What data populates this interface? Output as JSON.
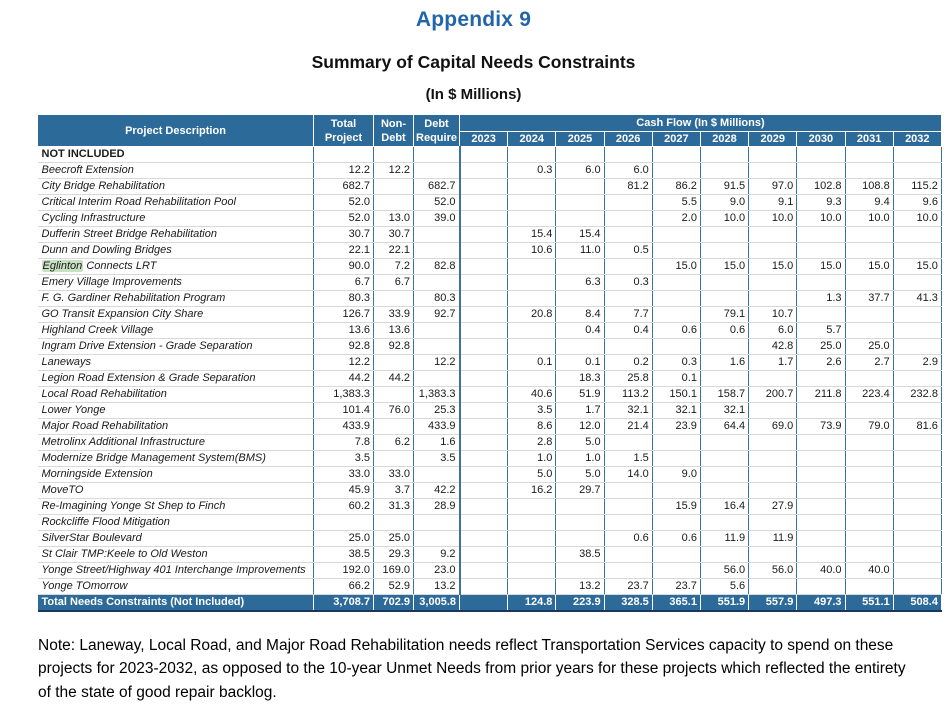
{
  "page": {
    "appendix_title": "Appendix 9",
    "table_title": "Summary of Capital Needs Constraints",
    "table_subtitle": "(In $ Millions)",
    "note": "Note: Laneway, Local Road, and Major Road Rehabilitation needs reflect Transportation Services capacity to spend on these projects for 2023-2032, as opposed to the 10-year Unmet Needs from prior years for these projects which reflected the entirety of the state of good repair backlog."
  },
  "colors": {
    "header_blue": "#2C6A9A",
    "title_blue": "#2166A8",
    "grid_blue": "#3B73A4",
    "grid_gray": "#D9D9D9",
    "total_border_navy": "#17375E",
    "highlight_green": "#C8E1C3"
  },
  "table": {
    "headers": {
      "project_description": "Project Description",
      "total_project": [
        "Total",
        "Project"
      ],
      "non_debt": [
        "Non-",
        "Debt"
      ],
      "debt_require": [
        "Debt",
        "Require"
      ],
      "cash_flow": "Cash Flow (In $ Millions)",
      "years": [
        "2023",
        "2024",
        "2025",
        "2026",
        "2027",
        "2028",
        "2029",
        "2030",
        "2031",
        "2032"
      ]
    },
    "rows": [
      {
        "name": "NOT INCLUDED",
        "bold": true,
        "total": "",
        "non_debt": "",
        "debt": "",
        "cf": [
          "",
          "",
          "",
          "",
          "",
          "",
          "",
          "",
          "",
          ""
        ]
      },
      {
        "name": "Beecroft Extension",
        "total": "12.2",
        "non_debt": "12.2",
        "debt": "",
        "cf": [
          "",
          "0.3",
          "6.0",
          "6.0",
          "",
          "",
          "",
          "",
          "",
          ""
        ]
      },
      {
        "name": "City Bridge Rehabilitation",
        "total": "682.7",
        "non_debt": "",
        "debt": "682.7",
        "cf": [
          "",
          "",
          "",
          "81.2",
          "86.2",
          "91.5",
          "97.0",
          "102.8",
          "108.8",
          "115.2"
        ]
      },
      {
        "name": "Critical Interim Road Rehabilitation Pool",
        "total": "52.0",
        "non_debt": "",
        "debt": "52.0",
        "cf": [
          "",
          "",
          "",
          "",
          "5.5",
          "9.0",
          "9.1",
          "9.3",
          "9.4",
          "9.6"
        ]
      },
      {
        "name": "Cycling Infrastructure",
        "total": "52.0",
        "non_debt": "13.0",
        "debt": "39.0",
        "cf": [
          "",
          "",
          "",
          "",
          "2.0",
          "10.0",
          "10.0",
          "10.0",
          "10.0",
          "10.0"
        ]
      },
      {
        "name": "Dufferin Street Bridge Rehabilitation",
        "total": "30.7",
        "non_debt": "30.7",
        "debt": "",
        "cf": [
          "",
          "15.4",
          "15.4",
          "",
          "",
          "",
          "",
          "",
          "",
          ""
        ]
      },
      {
        "name": "Dunn and Dowling Bridges",
        "total": "22.1",
        "non_debt": "22.1",
        "debt": "",
        "cf": [
          "",
          "10.6",
          "11.0",
          "0.5",
          "",
          "",
          "",
          "",
          "",
          ""
        ]
      },
      {
        "name": "Eglinton Connects LRT",
        "highlight": "Eglinton",
        "total": "90.0",
        "non_debt": "7.2",
        "debt": "82.8",
        "cf": [
          "",
          "",
          "",
          "",
          "15.0",
          "15.0",
          "15.0",
          "15.0",
          "15.0",
          "15.0"
        ]
      },
      {
        "name": "Emery Village Improvements",
        "total": "6.7",
        "non_debt": "6.7",
        "debt": "",
        "cf": [
          "",
          "",
          "6.3",
          "0.3",
          "",
          "",
          "",
          "",
          "",
          ""
        ]
      },
      {
        "name": "F. G. Gardiner Rehabilitation Program",
        "total": "80.3",
        "non_debt": "",
        "debt": "80.3",
        "cf": [
          "",
          "",
          "",
          "",
          "",
          "",
          "",
          "1.3",
          "37.7",
          "41.3"
        ]
      },
      {
        "name": "GO Transit Expansion City Share",
        "total": "126.7",
        "non_debt": "33.9",
        "debt": "92.7",
        "cf": [
          "",
          "20.8",
          "8.4",
          "7.7",
          "",
          "79.1",
          "10.7",
          "",
          "",
          ""
        ]
      },
      {
        "name": "Highland Creek Village",
        "total": "13.6",
        "non_debt": "13.6",
        "debt": "",
        "cf": [
          "",
          "",
          "0.4",
          "0.4",
          "0.6",
          "0.6",
          "6.0",
          "5.7",
          "",
          ""
        ]
      },
      {
        "name": "Ingram Drive Extension - Grade Separation",
        "total": "92.8",
        "non_debt": "92.8",
        "debt": "",
        "cf": [
          "",
          "",
          "",
          "",
          "",
          "",
          "42.8",
          "25.0",
          "25.0",
          ""
        ]
      },
      {
        "name": "Laneways",
        "total": "12.2",
        "non_debt": "",
        "debt": "12.2",
        "cf": [
          "",
          "0.1",
          "0.1",
          "0.2",
          "0.3",
          "1.6",
          "1.7",
          "2.6",
          "2.7",
          "2.9"
        ]
      },
      {
        "name": "Legion Road Extension & Grade Separation",
        "total": "44.2",
        "non_debt": "44.2",
        "debt": "",
        "cf": [
          "",
          "",
          "18.3",
          "25.8",
          "0.1",
          "",
          "",
          "",
          "",
          ""
        ]
      },
      {
        "name": "Local Road Rehabilitation",
        "total": "1,383.3",
        "non_debt": "",
        "debt": "1,383.3",
        "cf": [
          "",
          "40.6",
          "51.9",
          "113.2",
          "150.1",
          "158.7",
          "200.7",
          "211.8",
          "223.4",
          "232.8"
        ]
      },
      {
        "name": "Lower Yonge",
        "total": "101.4",
        "non_debt": "76.0",
        "debt": "25.3",
        "cf": [
          "",
          "3.5",
          "1.7",
          "32.1",
          "32.1",
          "32.1",
          "",
          "",
          "",
          ""
        ]
      },
      {
        "name": "Major Road Rehabilitation",
        "total": "433.9",
        "non_debt": "",
        "debt": "433.9",
        "cf": [
          "",
          "8.6",
          "12.0",
          "21.4",
          "23.9",
          "64.4",
          "69.0",
          "73.9",
          "79.0",
          "81.6"
        ]
      },
      {
        "name": "Metrolinx Additional Infrastructure",
        "total": "7.8",
        "non_debt": "6.2",
        "debt": "1.6",
        "cf": [
          "",
          "2.8",
          "5.0",
          "",
          "",
          "",
          "",
          "",
          "",
          ""
        ]
      },
      {
        "name": "Modernize Bridge Management System(BMS)",
        "total": "3.5",
        "non_debt": "",
        "debt": "3.5",
        "cf": [
          "",
          "1.0",
          "1.0",
          "1.5",
          "",
          "",
          "",
          "",
          "",
          ""
        ]
      },
      {
        "name": "Morningside Extension",
        "total": "33.0",
        "non_debt": "33.0",
        "debt": "",
        "cf": [
          "",
          "5.0",
          "5.0",
          "14.0",
          "9.0",
          "",
          "",
          "",
          "",
          ""
        ]
      },
      {
        "name": "MoveTO",
        "total": "45.9",
        "non_debt": "3.7",
        "debt": "42.2",
        "cf": [
          "",
          "16.2",
          "29.7",
          "",
          "",
          "",
          "",
          "",
          "",
          ""
        ]
      },
      {
        "name": "Re-Imagining Yonge St Shep to Finch",
        "total": "60.2",
        "non_debt": "31.3",
        "debt": "28.9",
        "cf": [
          "",
          "",
          "",
          "",
          "15.9",
          "16.4",
          "27.9",
          "",
          "",
          ""
        ]
      },
      {
        "name": "Rockcliffe Flood Mitigation",
        "total": "",
        "non_debt": "",
        "debt": "",
        "cf": [
          "",
          "",
          "",
          "",
          "",
          "",
          "",
          "",
          "",
          ""
        ]
      },
      {
        "name": "SilverStar Boulevard",
        "total": "25.0",
        "non_debt": "25.0",
        "debt": "",
        "cf": [
          "",
          "",
          "",
          "0.6",
          "0.6",
          "11.9",
          "11.9",
          "",
          "",
          ""
        ]
      },
      {
        "name": "St Clair TMP:Keele to Old Weston",
        "total": "38.5",
        "non_debt": "29.3",
        "debt": "9.2",
        "cf": [
          "",
          "",
          "38.5",
          "",
          "",
          "",
          "",
          "",
          "",
          ""
        ]
      },
      {
        "name": "Yonge Street/Highway 401 Interchange Improvements",
        "total": "192.0",
        "non_debt": "169.0",
        "debt": "23.0",
        "cf": [
          "",
          "",
          "",
          "",
          "",
          "56.0",
          "56.0",
          "40.0",
          "40.0",
          ""
        ]
      },
      {
        "name": "Yonge TOmorrow",
        "total": "66.2",
        "non_debt": "52.9",
        "debt": "13.2",
        "cf": [
          "",
          "",
          "13.2",
          "23.7",
          "23.7",
          "5.6",
          "",
          "",
          "",
          ""
        ]
      }
    ],
    "total_row": {
      "name": "Total Needs Constraints (Not Included)",
      "total": "3,708.7",
      "non_debt": "702.9",
      "debt": "3,005.8",
      "cf": [
        "",
        "124.8",
        "223.9",
        "328.5",
        "365.1",
        "551.9",
        "557.9",
        "497.3",
        "551.1",
        "508.4"
      ]
    }
  }
}
